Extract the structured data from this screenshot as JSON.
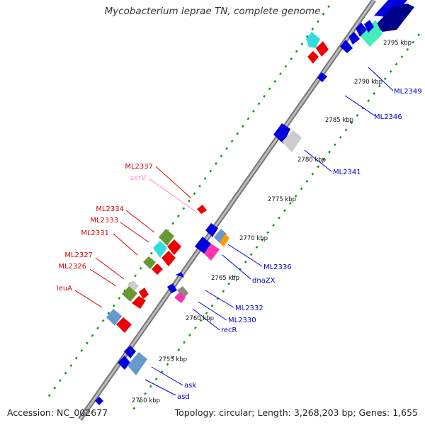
{
  "title": "Mycobacterium leprae TN, complete genome",
  "footer": {
    "accession": "Accession: NC_002677",
    "stats": "Topology: circular; Length: 3,268,203 bp; Genes: 1,655"
  },
  "colors": {
    "backbone": "#888888",
    "ticks": "#119911",
    "forward_label": "#dd0000",
    "reverse_label": "#0000cc",
    "rna_label": "#ff88cc"
  },
  "scale_labels": [
    "2750 kbp",
    "2755 kbp",
    "2760 kbp",
    "2765 kbp",
    "2770 kbp",
    "2775 kbp",
    "2780 kbp",
    "2785 kbp",
    "2790 kbp",
    "2795 kbp"
  ],
  "gene_labels_forward": [
    "ML2337",
    "serV",
    "ML2334",
    "ML2333",
    "ML2331",
    "ML2327",
    "ML2326",
    "leuA"
  ],
  "gene_labels_reverse": [
    "ML2349",
    "ML2346",
    "ML2341",
    "ML2336",
    "dnaZX",
    "ML2332",
    "ML2330",
    "recR",
    "ask",
    "asd"
  ]
}
